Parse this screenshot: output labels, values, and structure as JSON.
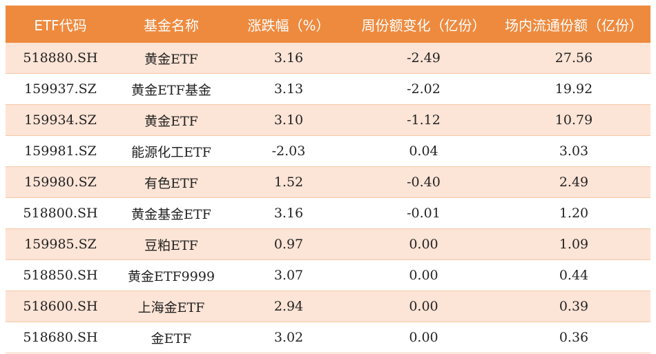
{
  "header": {
    "code": "ETF代码",
    "name": "基金名称",
    "change_pct": "涨跌幅（%）",
    "weekly_share_change": "周份额变化（亿份）",
    "onexchange_shares": "场内流通份额（亿份）"
  },
  "rows": [
    {
      "code": "518880.SH",
      "name": "黄金ETF",
      "change_pct": "3.16",
      "weekly_change": "-2.49",
      "shares": "27.56"
    },
    {
      "code": "159937.SZ",
      "name": "黄金ETF基金",
      "change_pct": "3.13",
      "weekly_change": "-2.02",
      "shares": "19.92"
    },
    {
      "code": "159934.SZ",
      "name": "黄金ETF",
      "change_pct": "3.10",
      "weekly_change": "-1.12",
      "shares": "10.79"
    },
    {
      "code": "159981.SZ",
      "name": "能源化工ETF",
      "change_pct": "-2.03",
      "weekly_change": "0.04",
      "shares": "3.03"
    },
    {
      "code": "159980.SZ",
      "name": "有色ETF",
      "change_pct": "1.52",
      "weekly_change": "-0.40",
      "shares": "2.49"
    },
    {
      "code": "518800.SH",
      "name": "黄金基金ETF",
      "change_pct": "3.16",
      "weekly_change": "-0.01",
      "shares": "1.20"
    },
    {
      "code": "159985.SZ",
      "name": "豆粕ETF",
      "change_pct": "0.97",
      "weekly_change": "0.00",
      "shares": "1.09"
    },
    {
      "code": "518850.SH",
      "name": "黄金ETF9999",
      "change_pct": "3.07",
      "weekly_change": "0.00",
      "shares": "0.44"
    },
    {
      "code": "518600.SH",
      "name": "上海金ETF",
      "change_pct": "2.94",
      "weekly_change": "0.00",
      "shares": "0.39"
    },
    {
      "code": "518680.SH",
      "name": "金ETF",
      "change_pct": "3.02",
      "weekly_change": "0.00",
      "shares": "0.36"
    }
  ],
  "colors": {
    "header_bg": "#ee8a3e",
    "stripe_bg": "#fce4d6",
    "header_text": "#ffffff"
  }
}
